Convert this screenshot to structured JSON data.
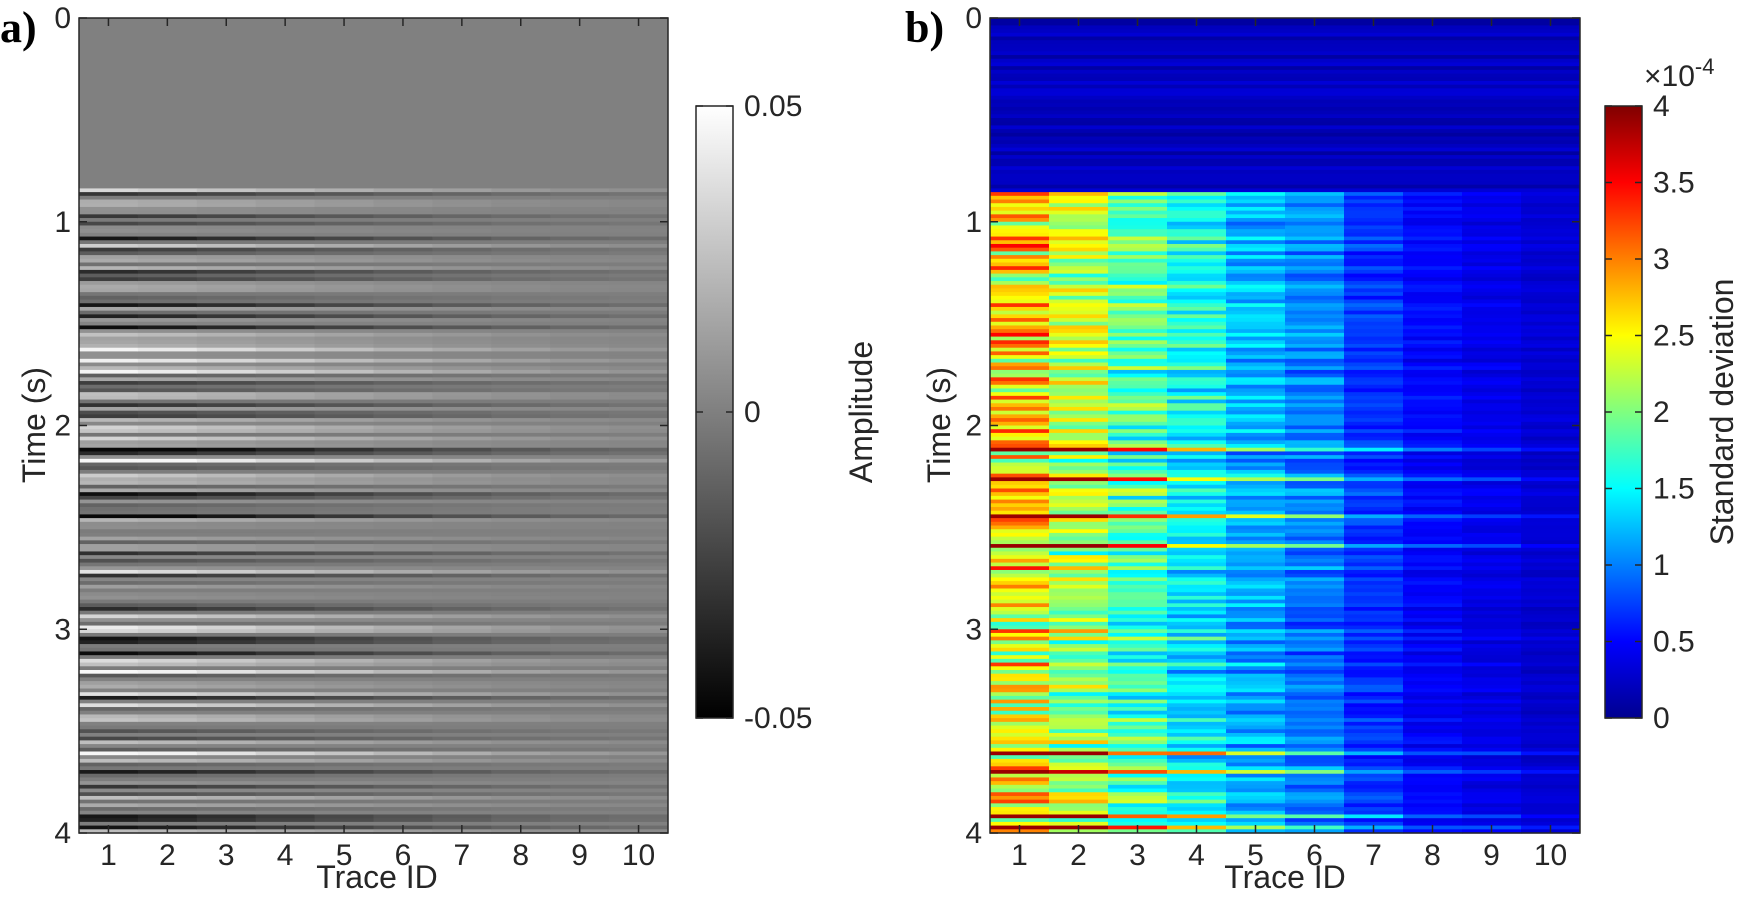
{
  "chart_data": [
    {
      "type": "heatmap",
      "panel_label": "a)",
      "xlabel": "Trace ID",
      "ylabel": "Time (s)",
      "x_ticks": [
        "1",
        "2",
        "3",
        "4",
        "5",
        "6",
        "7",
        "8",
        "9",
        "10"
      ],
      "y_ticks": [
        "0",
        "1",
        "2",
        "3",
        "4"
      ],
      "xlim": [
        0.5,
        10.5
      ],
      "ylim": [
        0,
        4
      ],
      "y_reversed": true,
      "colormap": "gray",
      "colorbar": {
        "label": "Amplitude",
        "range": [
          -0.05,
          0.05
        ],
        "ticks": [
          0.05,
          0,
          -0.05
        ],
        "tick_labels": [
          "0.05",
          "0",
          "-0.05"
        ]
      },
      "traces": [
        1,
        2,
        3,
        4,
        5,
        6,
        7,
        8,
        9,
        10
      ],
      "signal_onset_s": 0.83,
      "relative_trace_amplitude": [
        1.0,
        0.9,
        0.78,
        0.66,
        0.55,
        0.45,
        0.36,
        0.28,
        0.22,
        0.18
      ]
    },
    {
      "type": "heatmap",
      "panel_label": "b)",
      "xlabel": "Trace ID",
      "ylabel": "Time (s)",
      "x_ticks": [
        "1",
        "2",
        "3",
        "4",
        "5",
        "6",
        "7",
        "8",
        "9",
        "10"
      ],
      "y_ticks": [
        "0",
        "1",
        "2",
        "3",
        "4"
      ],
      "xlim": [
        0.5,
        10.5
      ],
      "ylim": [
        0,
        4
      ],
      "y_reversed": true,
      "colormap": "jet",
      "colorbar": {
        "label": "Standard deviation",
        "multiplier": "×10",
        "exponent": "-4",
        "range": [
          0,
          4
        ],
        "ticks": [
          4,
          3.5,
          3,
          2.5,
          2,
          1.5,
          1,
          0.5,
          0
        ],
        "tick_labels": [
          "4",
          "3.5",
          "3",
          "2.5",
          "2",
          "1.5",
          "1",
          "0.5",
          "0"
        ]
      },
      "traces": [
        1,
        2,
        3,
        4,
        5,
        6,
        7,
        8,
        9,
        10
      ],
      "signal_onset_s": 0.85,
      "mean_std_before_onset_e4": 0.2,
      "mean_std_by_trace_e4": [
        2.6,
        2.2,
        1.8,
        1.5,
        1.2,
        1.0,
        0.7,
        0.5,
        0.4,
        0.3
      ],
      "peak_std_e4": 3.9
    }
  ]
}
